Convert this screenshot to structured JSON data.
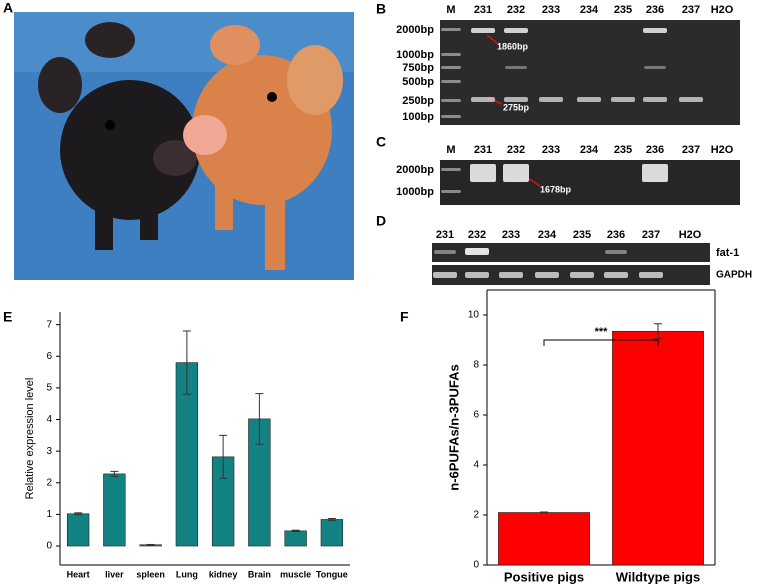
{
  "panels": {
    "A": {
      "label": "A"
    },
    "B": {
      "label": "B",
      "lanes": [
        "M",
        "231",
        "232",
        "233",
        "234",
        "235",
        "236",
        "237",
        "H2O"
      ],
      "markers": [
        "2000bp",
        "1000bp",
        "750bp",
        "500bp",
        "250bp",
        "100bp"
      ],
      "annotations": [
        "1860bp",
        "275bp"
      ]
    },
    "C": {
      "label": "C",
      "lanes": [
        "M",
        "231",
        "232",
        "233",
        "234",
        "235",
        "236",
        "237",
        "H2O"
      ],
      "markers": [
        "2000bp",
        "1000bp"
      ],
      "annotations": [
        "1678bp"
      ]
    },
    "D": {
      "label": "D",
      "lanes": [
        "231",
        "232",
        "233",
        "234",
        "235",
        "236",
        "237",
        "H2O"
      ],
      "rows": [
        "fat-1",
        "GAPDH"
      ]
    }
  },
  "chart_data": [
    {
      "type": "bar",
      "label": "E",
      "ylabel": "Relative expression level",
      "categories": [
        "Heart",
        "liver",
        "spleen",
        "Lung",
        "kidney",
        "Brain",
        "muscle",
        "Tongue"
      ],
      "values": [
        1.02,
        2.28,
        0.04,
        5.8,
        2.82,
        4.02,
        0.48,
        0.84
      ],
      "errors": [
        0.03,
        0.08,
        0.01,
        1.0,
        0.68,
        0.8,
        0.02,
        0.03
      ],
      "color": "#138282",
      "ylim": [
        -0.6,
        7.4
      ],
      "yticks": [
        0,
        1,
        2,
        3,
        4,
        5,
        6,
        7
      ]
    },
    {
      "type": "bar",
      "label": "F",
      "ylabel": "n-6PUFAs/n-3PUFAs",
      "categories": [
        "Positive pigs",
        "Wildtype pigs"
      ],
      "values": [
        2.1,
        9.35
      ],
      "errors": [
        0.02,
        0.3
      ],
      "color": "#ff0000",
      "ylim": [
        0,
        11
      ],
      "yticks": [
        0,
        2,
        4,
        6,
        8,
        10
      ],
      "annotation": "***"
    }
  ]
}
